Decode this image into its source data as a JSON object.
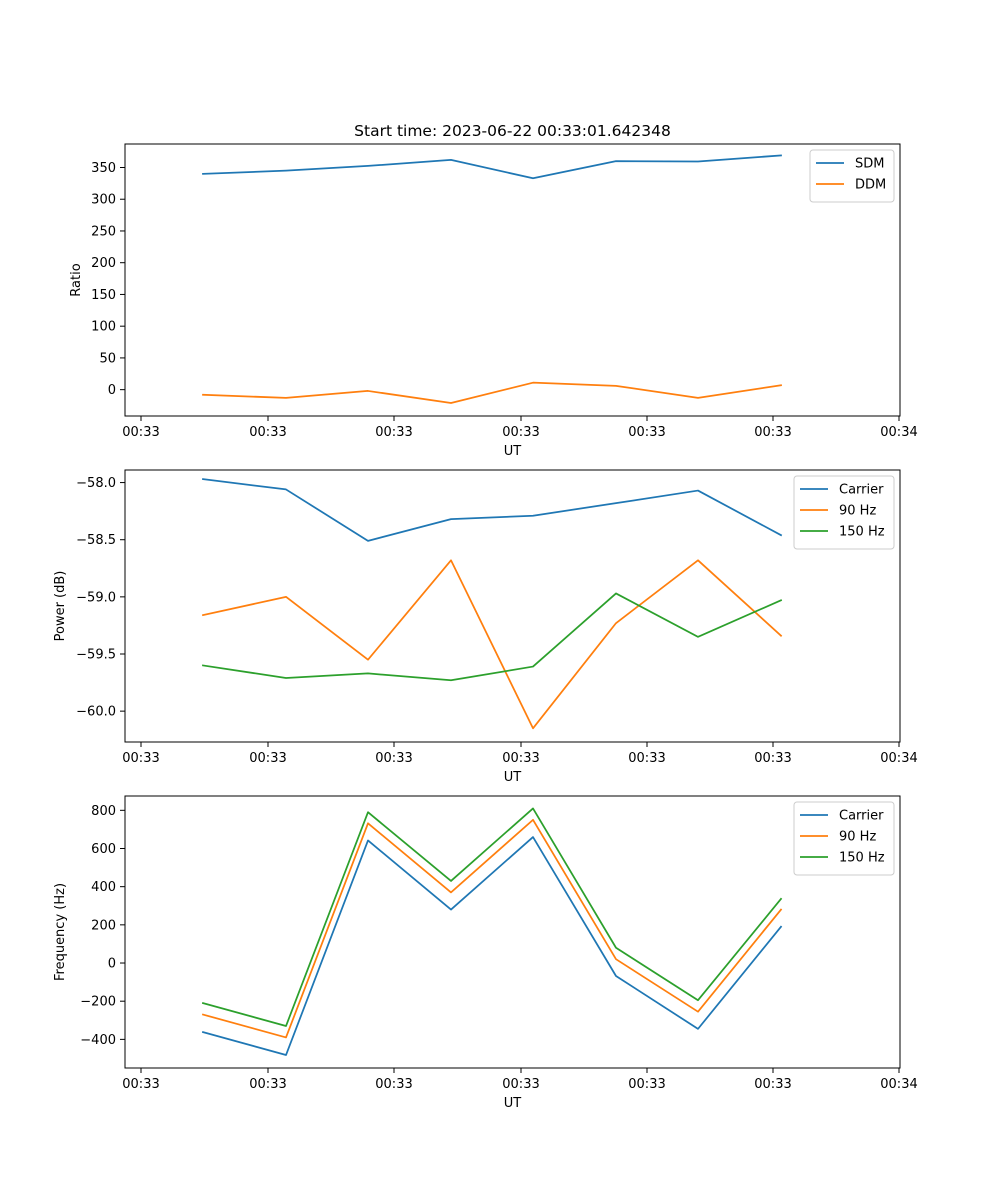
{
  "title": "Start time: 2023-06-22 00:33:01.642348",
  "colors": {
    "c0": "#1f77b4",
    "c1": "#ff7f0e",
    "c2": "#2ca02c"
  },
  "chart_data": [
    {
      "type": "line",
      "xlabel": "UT",
      "ylabel": "Ratio",
      "x_tick_labels": [
        "00:33",
        "00:33",
        "00:33",
        "00:33",
        "00:33",
        "00:33",
        "00:34"
      ],
      "y_ticks": [
        0,
        50,
        100,
        150,
        200,
        250,
        300,
        350
      ],
      "y_tick_labels": [
        "0",
        "50",
        "100",
        "150",
        "200",
        "250",
        "300",
        "350"
      ],
      "ylim": [
        -41.5,
        387
      ],
      "legend_position": "top-right",
      "grid": false,
      "x_categories": [
        1,
        2,
        3,
        4,
        5,
        6,
        7,
        8
      ],
      "series": [
        {
          "name": "SDM",
          "color": "#1f77b4",
          "values": [
            340,
            345,
            352.5,
            362,
            333,
            360,
            359.5,
            369
          ]
        },
        {
          "name": "DDM",
          "color": "#ff7f0e",
          "values": [
            -8,
            -13,
            -2,
            -21,
            11,
            6,
            -13,
            7
          ]
        }
      ]
    },
    {
      "type": "line",
      "xlabel": "UT",
      "ylabel": "Power (dB)",
      "x_tick_labels": [
        "00:33",
        "00:33",
        "00:33",
        "00:33",
        "00:33",
        "00:33",
        "00:34"
      ],
      "y_ticks": [
        -60.0,
        -59.5,
        -59.0,
        -58.5,
        -58.0
      ],
      "y_tick_labels": [
        "−60.0",
        "−59.5",
        "−59.0",
        "−58.5",
        "−58.0"
      ],
      "ylim": [
        -60.27,
        -57.89
      ],
      "legend_position": "top-right",
      "grid": false,
      "x_categories": [
        1,
        2,
        3,
        4,
        5,
        6,
        7,
        8
      ],
      "series": [
        {
          "name": "Carrier",
          "color": "#1f77b4",
          "values": [
            -57.97,
            -58.06,
            -58.51,
            -58.32,
            -58.29,
            -58.18,
            -58.07,
            -58.46
          ]
        },
        {
          "name": "90 Hz",
          "color": "#ff7f0e",
          "values": [
            -59.16,
            -59.0,
            -59.55,
            -58.68,
            -60.15,
            -59.23,
            -58.68,
            -59.34
          ]
        },
        {
          "name": "150 Hz",
          "color": "#2ca02c",
          "values": [
            -59.6,
            -59.71,
            -59.67,
            -59.73,
            -59.61,
            -58.97,
            -59.35,
            -59.03
          ]
        }
      ]
    },
    {
      "type": "line",
      "xlabel": "UT",
      "ylabel": "Frequency (Hz)",
      "x_tick_labels": [
        "00:33",
        "00:33",
        "00:33",
        "00:33",
        "00:33",
        "00:33",
        "00:34"
      ],
      "y_ticks": [
        -400,
        -200,
        0,
        200,
        400,
        600,
        800
      ],
      "y_tick_labels": [
        "−400",
        "−200",
        "0",
        "200",
        "400",
        "600",
        "800"
      ],
      "ylim": [
        -550,
        875
      ],
      "legend_position": "top-right",
      "grid": false,
      "x_categories": [
        1,
        2,
        3,
        4,
        5,
        6,
        7,
        8
      ],
      "series": [
        {
          "name": "Carrier",
          "color": "#1f77b4",
          "values": [
            -362,
            -482,
            642,
            280,
            660,
            -68,
            -345,
            190
          ]
        },
        {
          "name": "90 Hz",
          "color": "#ff7f0e",
          "values": [
            -270,
            -390,
            732,
            370,
            750,
            20,
            -255,
            280
          ]
        },
        {
          "name": "150 Hz",
          "color": "#2ca02c",
          "values": [
            -210,
            -330,
            790,
            430,
            810,
            80,
            -195,
            336
          ]
        }
      ]
    }
  ]
}
